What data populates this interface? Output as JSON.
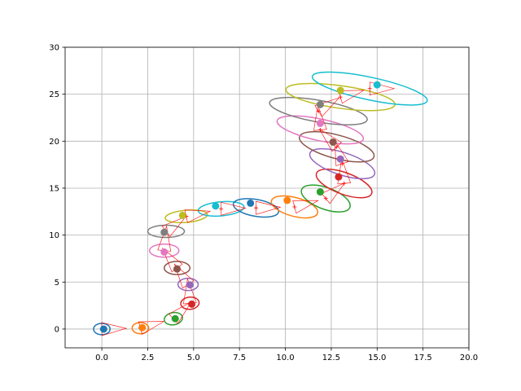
{
  "chart_data": {
    "type": "scatter",
    "title": "",
    "xlabel": "",
    "ylabel": "",
    "xlim": [
      -2,
      20
    ],
    "ylim": [
      -2,
      30
    ],
    "xticks": [
      0.0,
      2.5,
      5.0,
      7.5,
      10.0,
      12.5,
      15.0,
      17.5,
      20.0
    ],
    "xtick_labels": [
      "0.0",
      "2.5",
      "5.0",
      "7.5",
      "10.0",
      "12.5",
      "15.0",
      "17.5",
      "20.0"
    ],
    "yticks": [
      0,
      5,
      10,
      15,
      20,
      25,
      30
    ],
    "ytick_labels": [
      "0",
      "5",
      "10",
      "15",
      "20",
      "25",
      "30"
    ],
    "grid": true,
    "colors": [
      "#1f77b4",
      "#ff7f0e",
      "#2ca02c",
      "#d62728",
      "#9467bd",
      "#8c564b",
      "#e377c2",
      "#7f7f7f",
      "#bcbd22",
      "#17becf"
    ],
    "points": [
      {
        "x": 0.1,
        "y": 0.0,
        "ex": 0.0,
        "ey": 0.0,
        "w": 0.9,
        "h": 1.2,
        "angle": 0
      },
      {
        "x": 2.2,
        "y": 0.15,
        "ex": 2.1,
        "ey": 0.1,
        "w": 0.9,
        "h": 1.2,
        "angle": 0
      },
      {
        "x": 4.0,
        "y": 1.1,
        "ex": 3.9,
        "ey": 1.1,
        "w": 1.0,
        "h": 1.3,
        "angle": 10
      },
      {
        "x": 4.9,
        "y": 2.65,
        "ex": 4.8,
        "ey": 2.75,
        "w": 1.0,
        "h": 1.3,
        "angle": 5
      },
      {
        "x": 4.8,
        "y": 4.7,
        "ex": 4.7,
        "ey": 4.75,
        "w": 1.1,
        "h": 1.3,
        "angle": 0
      },
      {
        "x": 4.1,
        "y": 6.4,
        "ex": 4.1,
        "ey": 6.5,
        "w": 1.4,
        "h": 1.4,
        "angle": 0
      },
      {
        "x": 3.4,
        "y": 8.2,
        "ex": 3.4,
        "ey": 8.35,
        "w": 1.6,
        "h": 1.4,
        "angle": 0
      },
      {
        "x": 3.4,
        "y": 10.3,
        "ex": 3.5,
        "ey": 10.4,
        "w": 2.0,
        "h": 1.3,
        "angle": 0
      },
      {
        "x": 4.4,
        "y": 12.1,
        "ex": 4.6,
        "ey": 12.0,
        "w": 2.3,
        "h": 1.3,
        "angle": 5
      },
      {
        "x": 6.2,
        "y": 13.1,
        "ex": 6.5,
        "ey": 12.8,
        "w": 2.5,
        "h": 1.5,
        "angle": 5
      },
      {
        "x": 8.1,
        "y": 13.4,
        "ex": 8.4,
        "ey": 12.9,
        "w": 2.5,
        "h": 1.8,
        "angle": -10
      },
      {
        "x": 10.1,
        "y": 13.7,
        "ex": 10.5,
        "ey": 13.0,
        "w": 2.6,
        "h": 2.0,
        "angle": -15
      },
      {
        "x": 11.9,
        "y": 14.6,
        "ex": 12.2,
        "ey": 13.9,
        "w": 2.8,
        "h": 2.3,
        "angle": -20
      },
      {
        "x": 12.9,
        "y": 16.2,
        "ex": 13.2,
        "ey": 15.5,
        "w": 3.2,
        "h": 2.3,
        "angle": -20
      },
      {
        "x": 13.0,
        "y": 18.1,
        "ex": 13.1,
        "ey": 17.6,
        "w": 3.7,
        "h": 2.4,
        "angle": -18
      },
      {
        "x": 12.6,
        "y": 19.9,
        "ex": 12.8,
        "ey": 19.4,
        "w": 4.2,
        "h": 2.5,
        "angle": -15
      },
      {
        "x": 11.9,
        "y": 21.9,
        "ex": 11.9,
        "ey": 21.2,
        "w": 4.8,
        "h": 2.3,
        "angle": -12
      },
      {
        "x": 11.9,
        "y": 23.9,
        "ex": 11.8,
        "ey": 23.2,
        "w": 5.4,
        "h": 2.3,
        "angle": -10
      },
      {
        "x": 13.0,
        "y": 25.4,
        "ex": 13.0,
        "ey": 24.7,
        "w": 6.0,
        "h": 2.4,
        "angle": -8
      },
      {
        "x": 15.0,
        "y": 26.0,
        "ex": 14.6,
        "ey": 25.6,
        "w": 6.4,
        "h": 2.4,
        "angle": -12
      }
    ]
  }
}
